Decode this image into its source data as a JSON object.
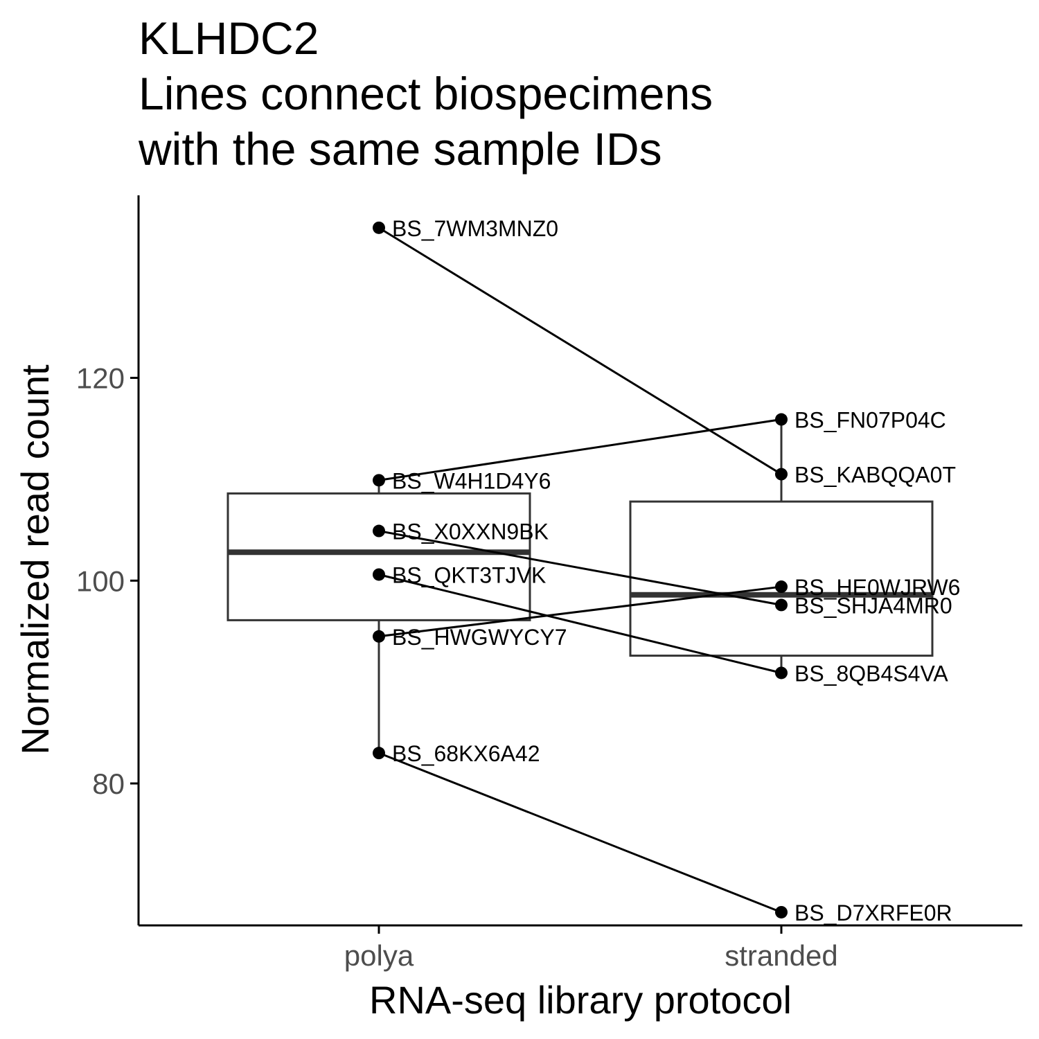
{
  "chart_data": {
    "type": "boxplot",
    "title_lines": [
      "KLHDC2",
      "Lines connect biospecimens",
      "with the same sample IDs"
    ],
    "xlabel": "RNA-seq library protocol",
    "ylabel": "Normalized read count",
    "categories": [
      "polya",
      "stranded"
    ],
    "ylim": [
      66,
      138
    ],
    "yticks": [
      80,
      100,
      120
    ],
    "grid": false,
    "boxes": [
      {
        "category": "polya",
        "min": 83,
        "q1": 96.1,
        "median": 102.8,
        "q3": 108.6,
        "max": 110
      },
      {
        "category": "stranded",
        "min": 91,
        "q1": 92.6,
        "median": 98.6,
        "q3": 107.8,
        "max": 116
      }
    ],
    "points": [
      {
        "label": "BS_7WM3MNZ0",
        "category": "polya",
        "value": 134.8
      },
      {
        "label": "BS_W4H1D4Y6",
        "category": "polya",
        "value": 109.9
      },
      {
        "label": "BS_X0XXN9BK",
        "category": "polya",
        "value": 104.9
      },
      {
        "label": "BS_QKT3TJVK",
        "category": "polya",
        "value": 100.6
      },
      {
        "label": "BS_HWGWYCY7",
        "category": "polya",
        "value": 94.5
      },
      {
        "label": "BS_68KX6A42",
        "category": "polya",
        "value": 83.0
      },
      {
        "label": "BS_FN07P04C",
        "category": "stranded",
        "value": 115.9
      },
      {
        "label": "BS_KABQQA0T",
        "category": "stranded",
        "value": 110.5
      },
      {
        "label": "BS_HE0WJRW6",
        "category": "stranded",
        "value": 99.4
      },
      {
        "label": "BS_SHJA4MR0",
        "category": "stranded",
        "value": 97.6
      },
      {
        "label": "BS_8QB4S4VA",
        "category": "stranded",
        "value": 90.9
      },
      {
        "label": "BS_D7XRFE0R",
        "category": "stranded",
        "value": 67.3
      }
    ],
    "pairs": [
      [
        "BS_7WM3MNZ0",
        "BS_KABQQA0T"
      ],
      [
        "BS_W4H1D4Y6",
        "BS_FN07P04C"
      ],
      [
        "BS_X0XXN9BK",
        "BS_SHJA4MR0"
      ],
      [
        "BS_QKT3TJVK",
        "BS_8QB4S4VA"
      ],
      [
        "BS_HWGWYCY7",
        "BS_HE0WJRW6"
      ],
      [
        "BS_68KX6A42",
        "BS_D7XRFE0R"
      ]
    ],
    "colors": {
      "box": "#333333",
      "point": "#000000",
      "line": "#000000",
      "tick_text": "#4d4d4d"
    }
  }
}
